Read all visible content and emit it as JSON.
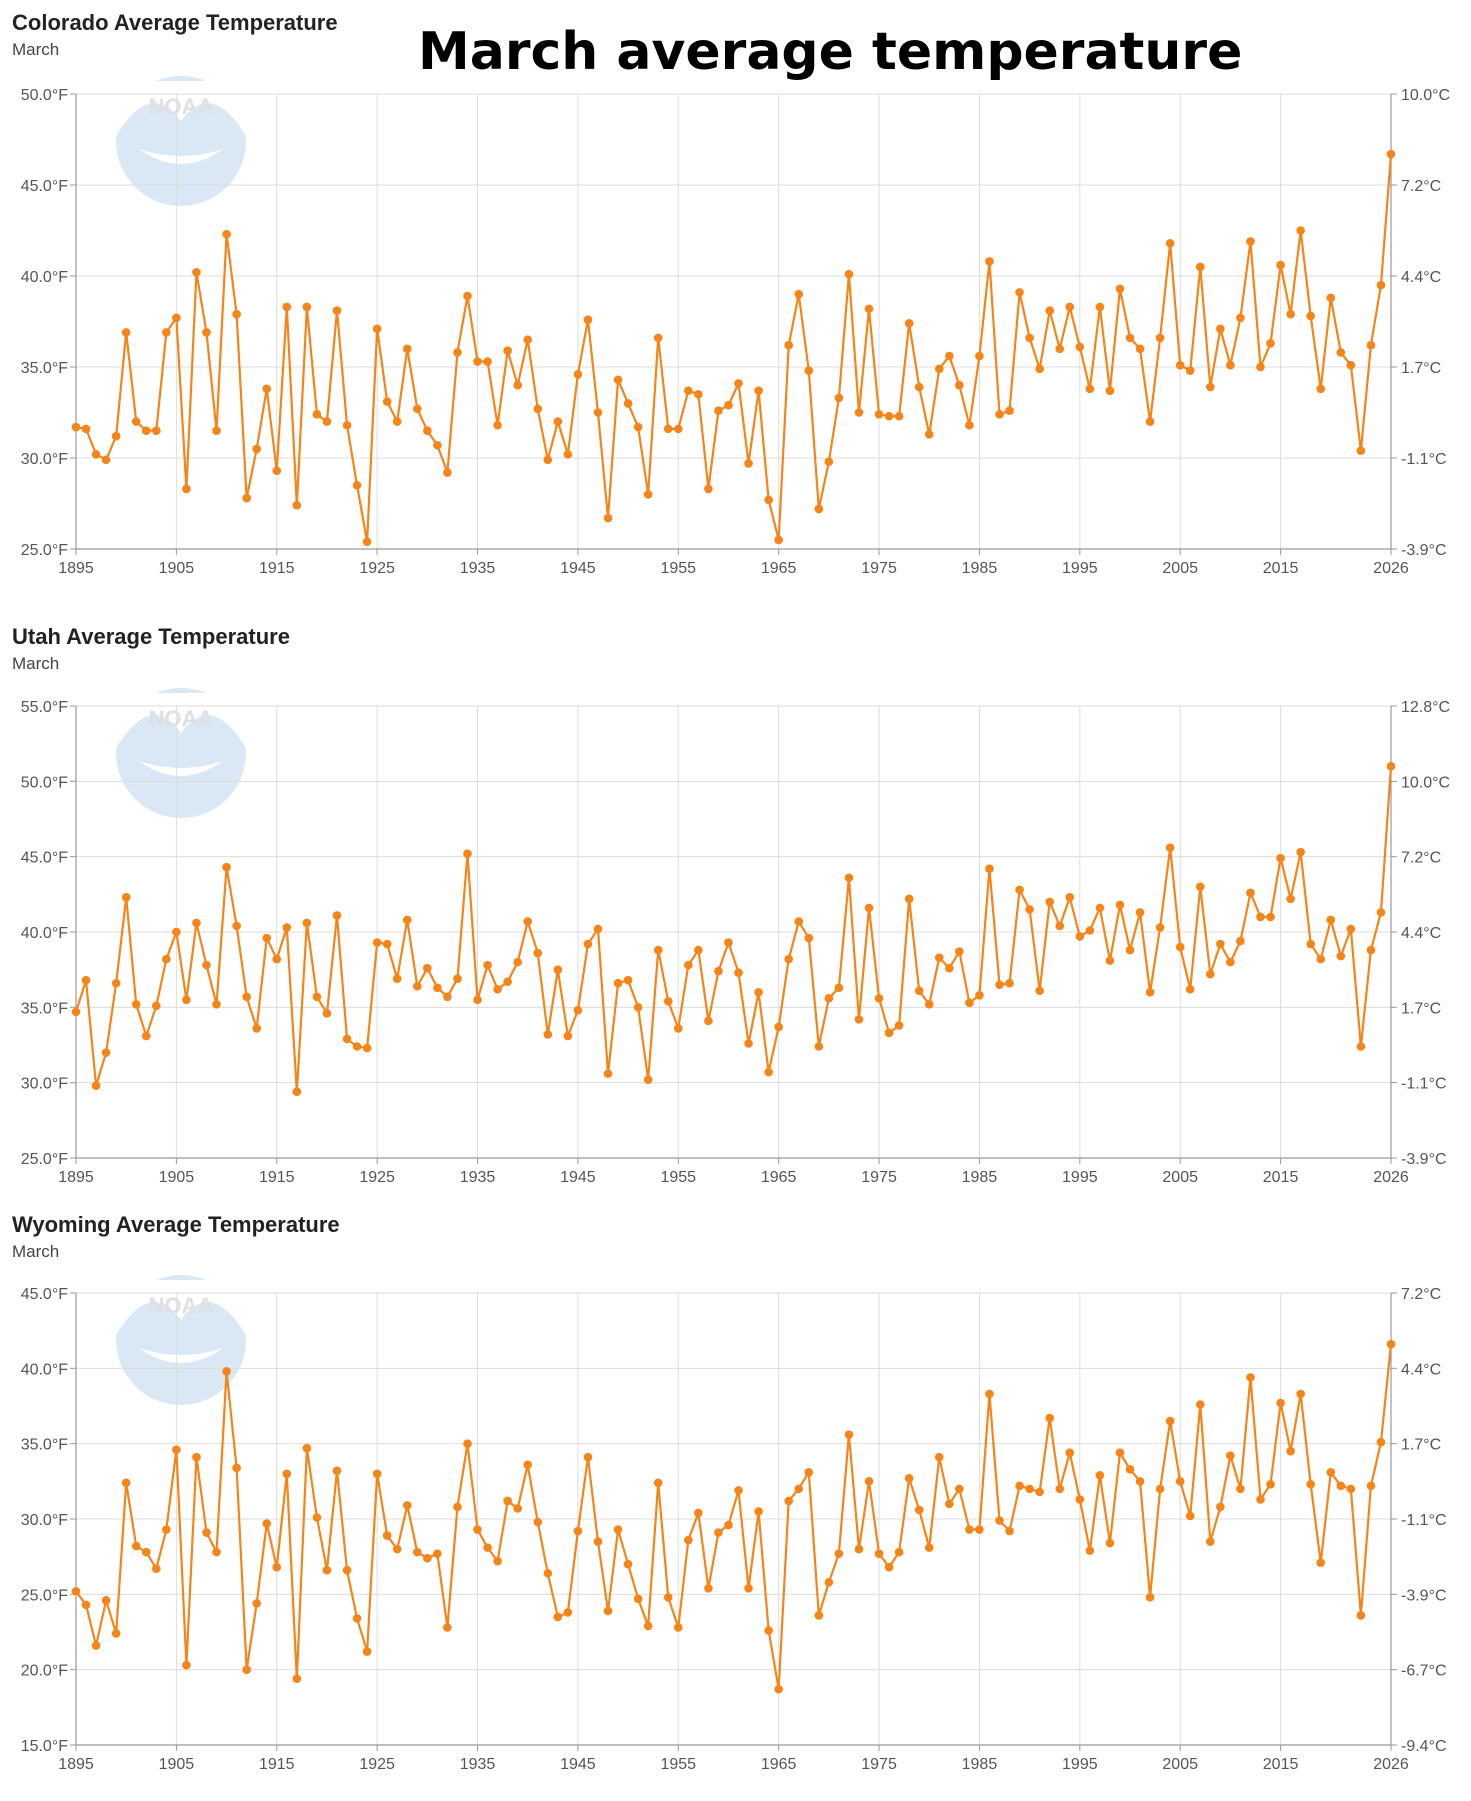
{
  "headline": "March average temperature",
  "logo_text": "NOAA",
  "series_color": "#f58518",
  "chart_data": [
    {
      "type": "line",
      "title": "Colorado Average Temperature",
      "subtitle": "March",
      "x_ticks": [
        "1895",
        "1905",
        "1915",
        "1925",
        "1935",
        "1945",
        "1955",
        "1965",
        "1975",
        "1985",
        "1995",
        "2005",
        "2015",
        "2026"
      ],
      "y_left_ticks": [
        "25.0°F",
        "30.0°F",
        "35.0°F",
        "40.0°F",
        "45.0°F",
        "50.0°F"
      ],
      "y_right_ticks": [
        "-3.9°C",
        "-1.1°C",
        "1.7°C",
        "4.4°C",
        "7.2°C",
        "10.0°C"
      ],
      "xlim": [
        1895,
        2026
      ],
      "ylim": [
        25,
        50
      ],
      "series": [
        {
          "name": "Colorado",
          "x_start": 1895,
          "values": [
            31.7,
            31.6,
            30.2,
            29.9,
            31.2,
            36.9,
            32.0,
            31.5,
            31.5,
            36.9,
            37.7,
            28.3,
            40.2,
            36.9,
            31.5,
            42.3,
            37.9,
            27.8,
            30.5,
            33.8,
            29.3,
            38.3,
            27.4,
            38.3,
            32.4,
            32.0,
            38.1,
            31.8,
            28.5,
            25.4,
            37.1,
            33.1,
            32.0,
            36.0,
            32.7,
            31.5,
            30.7,
            29.2,
            35.8,
            38.9,
            35.3,
            35.3,
            31.8,
            35.9,
            34.0,
            36.5,
            32.7,
            29.9,
            32.0,
            30.2,
            34.6,
            37.6,
            32.5,
            26.7,
            34.3,
            33.0,
            31.7,
            28.0,
            36.6,
            31.6,
            31.6,
            33.7,
            33.5,
            28.3,
            32.6,
            32.9,
            34.1,
            29.7,
            33.7,
            27.7,
            25.5,
            36.2,
            39.0,
            34.8,
            27.2,
            29.8,
            33.3,
            40.1,
            32.5,
            38.2,
            32.4,
            32.3,
            32.3,
            37.4,
            33.9,
            31.3,
            34.9,
            35.6,
            34.0,
            31.8,
            35.6,
            40.8,
            32.4,
            32.6,
            39.1,
            36.6,
            34.9,
            38.1,
            36.0,
            38.3,
            36.1,
            33.8,
            38.3,
            33.7,
            39.3,
            36.6,
            36.0,
            32.0,
            36.6,
            41.8,
            35.1,
            34.8,
            40.5,
            33.9,
            37.1,
            35.1,
            37.7,
            41.9,
            35.0,
            36.3,
            40.6,
            37.9,
            42.5,
            37.8,
            33.8,
            38.8,
            35.8,
            35.1,
            30.4,
            36.2,
            39.5,
            46.7
          ]
        }
      ]
    },
    {
      "type": "line",
      "title": "Utah Average Temperature",
      "subtitle": "March",
      "x_ticks": [
        "1895",
        "1905",
        "1915",
        "1925",
        "1935",
        "1945",
        "1955",
        "1965",
        "1975",
        "1985",
        "1995",
        "2005",
        "2015",
        "2026"
      ],
      "y_left_ticks": [
        "25.0°F",
        "30.0°F",
        "35.0°F",
        "40.0°F",
        "45.0°F",
        "50.0°F",
        "55.0°F"
      ],
      "y_right_ticks": [
        "-3.9°C",
        "-1.1°C",
        "1.7°C",
        "4.4°C",
        "7.2°C",
        "10.0°C",
        "12.8°C"
      ],
      "xlim": [
        1895,
        2026
      ],
      "ylim": [
        25,
        55
      ],
      "series": [
        {
          "name": "Utah",
          "x_start": 1895,
          "values": [
            34.7,
            36.8,
            29.8,
            32.0,
            36.6,
            42.3,
            35.2,
            33.1,
            35.1,
            38.2,
            40.0,
            35.5,
            40.6,
            37.8,
            35.2,
            44.3,
            40.4,
            35.7,
            33.6,
            39.6,
            38.2,
            40.3,
            29.4,
            40.6,
            35.7,
            34.6,
            41.1,
            32.9,
            32.4,
            32.3,
            39.3,
            39.2,
            36.9,
            40.8,
            36.4,
            37.6,
            36.3,
            35.7,
            36.9,
            45.2,
            35.5,
            37.8,
            36.2,
            36.7,
            38.0,
            40.7,
            38.6,
            33.2,
            37.5,
            33.1,
            34.8,
            39.2,
            40.2,
            30.6,
            36.6,
            36.8,
            35.0,
            30.2,
            38.8,
            35.4,
            33.6,
            37.8,
            38.8,
            34.1,
            37.4,
            39.3,
            37.3,
            32.6,
            36.0,
            30.7,
            33.7,
            38.2,
            40.7,
            39.6,
            32.4,
            35.6,
            36.3,
            43.6,
            34.2,
            41.6,
            35.6,
            33.3,
            33.8,
            42.2,
            36.1,
            35.2,
            38.3,
            37.6,
            38.7,
            35.3,
            35.8,
            44.2,
            36.5,
            36.6,
            42.8,
            41.5,
            36.1,
            42.0,
            40.4,
            42.3,
            39.7,
            40.1,
            41.6,
            38.1,
            41.8,
            38.8,
            41.3,
            36.0,
            40.3,
            45.6,
            39.0,
            36.2,
            43.0,
            37.2,
            39.2,
            38.0,
            39.4,
            42.6,
            41.0,
            41.0,
            44.9,
            42.2,
            45.3,
            39.2,
            38.2,
            40.8,
            38.4,
            40.2,
            32.4,
            38.8,
            41.3,
            51.0
          ]
        }
      ]
    },
    {
      "type": "line",
      "title": "Wyoming Average Temperature",
      "subtitle": "March",
      "x_ticks": [
        "1895",
        "1905",
        "1915",
        "1925",
        "1935",
        "1945",
        "1955",
        "1965",
        "1975",
        "1985",
        "1995",
        "2005",
        "2015",
        "2026"
      ],
      "y_left_ticks": [
        "15.0°F",
        "20.0°F",
        "25.0°F",
        "30.0°F",
        "35.0°F",
        "40.0°F",
        "45.0°F"
      ],
      "y_right_ticks": [
        "-9.4°C",
        "-6.7°C",
        "-3.9°C",
        "-1.1°C",
        "1.7°C",
        "4.4°C",
        "7.2°C"
      ],
      "xlim": [
        1895,
        2026
      ],
      "ylim": [
        15,
        45
      ],
      "series": [
        {
          "name": "Wyoming",
          "x_start": 1895,
          "values": [
            25.2,
            24.3,
            21.6,
            24.6,
            22.4,
            32.4,
            28.2,
            27.8,
            26.7,
            29.3,
            34.6,
            20.3,
            34.1,
            29.1,
            27.8,
            39.8,
            33.4,
            20.0,
            24.4,
            29.7,
            26.8,
            33.0,
            19.4,
            34.7,
            30.1,
            26.6,
            33.2,
            26.6,
            23.4,
            21.2,
            33.0,
            28.9,
            28.0,
            30.9,
            27.8,
            27.4,
            27.7,
            22.8,
            30.8,
            35.0,
            29.3,
            28.1,
            27.2,
            31.2,
            30.7,
            33.6,
            29.8,
            26.4,
            23.5,
            23.8,
            29.2,
            34.1,
            28.5,
            23.9,
            29.3,
            27.0,
            24.7,
            22.9,
            32.4,
            24.8,
            22.8,
            28.6,
            30.4,
            25.4,
            29.1,
            29.6,
            31.9,
            25.4,
            30.5,
            22.6,
            18.7,
            31.2,
            32.0,
            33.1,
            23.6,
            25.8,
            27.7,
            35.6,
            28.0,
            32.5,
            27.7,
            26.8,
            27.8,
            32.7,
            30.6,
            28.1,
            34.1,
            31.0,
            32.0,
            29.3,
            29.3,
            38.3,
            29.9,
            29.2,
            32.2,
            32.0,
            31.8,
            36.7,
            32.0,
            34.4,
            31.3,
            27.9,
            32.9,
            28.4,
            34.4,
            33.3,
            32.5,
            24.8,
            32.0,
            36.5,
            32.5,
            30.2,
            37.6,
            28.5,
            30.8,
            34.2,
            32.0,
            39.4,
            31.3,
            32.3,
            37.7,
            34.5,
            38.3,
            32.3,
            27.1,
            33.1,
            32.2,
            32.0,
            23.6,
            32.2,
            35.1,
            41.6
          ]
        }
      ]
    }
  ]
}
